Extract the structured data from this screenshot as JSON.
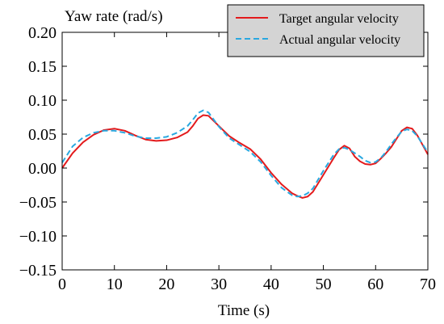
{
  "chart_data": {
    "type": "line",
    "title": "",
    "xlabel": "Time (s)",
    "ylabel": "Yaw rate (rad/s)",
    "xlim": [
      0,
      70
    ],
    "ylim": [
      -0.15,
      0.2
    ],
    "x_ticks": [
      0,
      10,
      20,
      30,
      40,
      50,
      60,
      70
    ],
    "x_tick_labels": [
      "0",
      "10",
      "20",
      "30",
      "40",
      "50",
      "60",
      "70"
    ],
    "y_ticks": [
      -0.15,
      -0.1,
      -0.05,
      0,
      0.05,
      0.1,
      0.15,
      0.2
    ],
    "y_tick_labels": [
      "−0.15",
      "−0.10",
      "−0.05",
      "0.00",
      "0.05",
      "0.10",
      "0.15",
      "0.20"
    ],
    "grid": false,
    "legend_position": "top-right",
    "series": [
      {
        "name": "Target angular velocity",
        "color": "#e31a1c",
        "dash": "solid",
        "x": [
          0,
          2,
          4,
          6,
          8,
          10,
          12,
          14,
          16,
          18,
          20,
          22,
          24,
          25,
          26,
          27,
          28,
          30,
          32,
          34,
          36,
          38,
          40,
          42,
          44,
          45,
          46,
          47,
          48,
          50,
          52,
          53,
          54,
          55,
          56,
          57,
          58,
          59,
          60,
          61,
          62,
          63,
          64,
          65,
          66,
          67,
          68,
          69,
          70
        ],
        "y": [
          0.0,
          0.022,
          0.038,
          0.049,
          0.056,
          0.058,
          0.055,
          0.048,
          0.042,
          0.04,
          0.041,
          0.045,
          0.053,
          0.062,
          0.073,
          0.078,
          0.077,
          0.062,
          0.047,
          0.037,
          0.028,
          0.013,
          -0.007,
          -0.024,
          -0.037,
          -0.041,
          -0.044,
          -0.042,
          -0.035,
          -0.01,
          0.015,
          0.027,
          0.033,
          0.029,
          0.017,
          0.01,
          0.006,
          0.005,
          0.007,
          0.014,
          0.022,
          0.031,
          0.043,
          0.055,
          0.06,
          0.058,
          0.048,
          0.034,
          0.02
        ]
      },
      {
        "name": "Actual angular velocity",
        "color": "#29a8e0",
        "dash": "dashed",
        "x": [
          0,
          2,
          4,
          6,
          8,
          10,
          12,
          14,
          16,
          18,
          20,
          22,
          24,
          25,
          26,
          27,
          28,
          30,
          32,
          34,
          36,
          38,
          40,
          42,
          44,
          45,
          46,
          47,
          48,
          50,
          52,
          53,
          54,
          55,
          56,
          57,
          58,
          59,
          60,
          61,
          62,
          63,
          64,
          65,
          66,
          67,
          68,
          69,
          70
        ],
        "y": [
          0.008,
          0.032,
          0.045,
          0.052,
          0.055,
          0.055,
          0.052,
          0.047,
          0.044,
          0.044,
          0.046,
          0.052,
          0.062,
          0.071,
          0.081,
          0.085,
          0.082,
          0.061,
          0.044,
          0.034,
          0.024,
          0.009,
          -0.011,
          -0.029,
          -0.04,
          -0.042,
          -0.041,
          -0.037,
          -0.03,
          -0.004,
          0.02,
          0.028,
          0.03,
          0.027,
          0.022,
          0.017,
          0.011,
          0.008,
          0.009,
          0.015,
          0.024,
          0.035,
          0.045,
          0.054,
          0.057,
          0.055,
          0.047,
          0.035,
          0.023
        ]
      }
    ]
  }
}
